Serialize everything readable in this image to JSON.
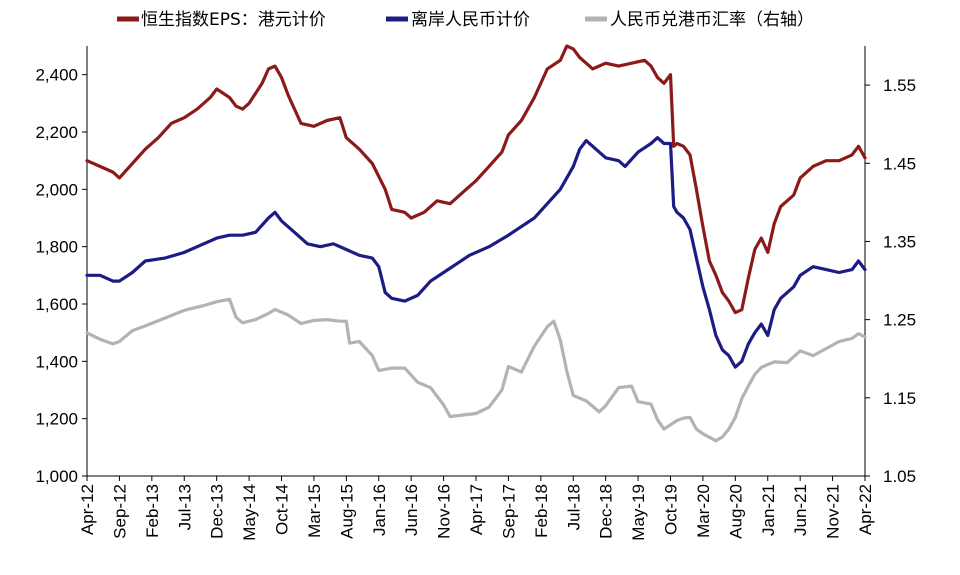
{
  "chart_data": {
    "type": "line",
    "legend": [
      "恒生指数EPS：港元计价",
      "离岸人民币计价",
      "人民币兑港币汇率（右轴）"
    ],
    "legend_position": "top",
    "colors": {
      "eps_hkd": "#8b1a1a",
      "eps_cny": "#1c1c84",
      "fx": "#b3b3b3",
      "axis": "#000000"
    },
    "y_left": {
      "min": 1000,
      "max": 2500,
      "ticks": [
        1000,
        1200,
        1400,
        1600,
        1800,
        2000,
        2200,
        2400
      ],
      "tick_labels": [
        "1,000",
        "1,200",
        "1,400",
        "1,600",
        "1,800",
        "2,000",
        "2,200",
        "2,400"
      ]
    },
    "y_right": {
      "min": 1.05,
      "max": 1.6,
      "ticks": [
        1.05,
        1.15,
        1.25,
        1.35,
        1.45,
        1.55
      ],
      "tick_labels": [
        "1.05",
        "1.15",
        "1.25",
        "1.35",
        "1.45",
        "1.55"
      ]
    },
    "x_axis": {
      "start": "2012-04",
      "end": "2022-04",
      "tick_labels": [
        "Apr-12",
        "Sep-12",
        "Feb-13",
        "Jul-13",
        "Dec-13",
        "May-14",
        "Oct-14",
        "Mar-15",
        "Aug-15",
        "Jan-16",
        "Jun-16",
        "Nov-16",
        "Apr-17",
        "Sep-17",
        "Feb-18",
        "Jul-18",
        "Dec-18",
        "May-19",
        "Oct-19",
        "Mar-20",
        "Aug-20",
        "Jan-21",
        "Jun-21",
        "Nov-21",
        "Apr-22"
      ]
    },
    "grid": false,
    "series": [
      {
        "name": "恒生指数EPS：港元计价",
        "axis": "left",
        "points": [
          [
            "2012-04",
            2100
          ],
          [
            "2012-06",
            2080
          ],
          [
            "2012-08",
            2060
          ],
          [
            "2012-09",
            2040
          ],
          [
            "2012-11",
            2090
          ],
          [
            "2013-01",
            2140
          ],
          [
            "2013-03",
            2180
          ],
          [
            "2013-05",
            2230
          ],
          [
            "2013-07",
            2250
          ],
          [
            "2013-09",
            2280
          ],
          [
            "2013-11",
            2320
          ],
          [
            "2013-12",
            2350
          ],
          [
            "2014-02",
            2320
          ],
          [
            "2014-03",
            2290
          ],
          [
            "2014-04",
            2280
          ],
          [
            "2014-05",
            2300
          ],
          [
            "2014-07",
            2370
          ],
          [
            "2014-08",
            2420
          ],
          [
            "2014-09",
            2430
          ],
          [
            "2014-10",
            2390
          ],
          [
            "2014-11",
            2330
          ],
          [
            "2014-12",
            2280
          ],
          [
            "2015-01",
            2230
          ],
          [
            "2015-03",
            2220
          ],
          [
            "2015-05",
            2240
          ],
          [
            "2015-07",
            2250
          ],
          [
            "2015-08",
            2180
          ],
          [
            "2015-10",
            2140
          ],
          [
            "2015-12",
            2090
          ],
          [
            "2016-02",
            2000
          ],
          [
            "2016-03",
            1930
          ],
          [
            "2016-05",
            1920
          ],
          [
            "2016-06",
            1900
          ],
          [
            "2016-08",
            1920
          ],
          [
            "2016-10",
            1960
          ],
          [
            "2016-12",
            1950
          ],
          [
            "2017-02",
            1990
          ],
          [
            "2017-04",
            2030
          ],
          [
            "2017-06",
            2080
          ],
          [
            "2017-08",
            2130
          ],
          [
            "2017-09",
            2190
          ],
          [
            "2017-11",
            2240
          ],
          [
            "2018-01",
            2320
          ],
          [
            "2018-03",
            2420
          ],
          [
            "2018-05",
            2450
          ],
          [
            "2018-06",
            2500
          ],
          [
            "2018-07",
            2490
          ],
          [
            "2018-08",
            2460
          ],
          [
            "2018-09",
            2440
          ],
          [
            "2018-10",
            2420
          ],
          [
            "2018-12",
            2440
          ],
          [
            "2019-02",
            2430
          ],
          [
            "2019-04",
            2440
          ],
          [
            "2019-06",
            2450
          ],
          [
            "2019-07",
            2430
          ],
          [
            "2019-08",
            2390
          ],
          [
            "2019-09",
            2370
          ],
          [
            "2019-10",
            2400
          ],
          [
            "2019-10.5",
            2150
          ],
          [
            "2019-11",
            2160
          ],
          [
            "2019-12",
            2150
          ],
          [
            "2020-01",
            2120
          ],
          [
            "2020-02",
            2000
          ],
          [
            "2020-03",
            1870
          ],
          [
            "2020-04",
            1750
          ],
          [
            "2020-05",
            1700
          ],
          [
            "2020-06",
            1640
          ],
          [
            "2020-07",
            1610
          ],
          [
            "2020-08",
            1570
          ],
          [
            "2020-09",
            1580
          ],
          [
            "2020-10",
            1690
          ],
          [
            "2020-11",
            1790
          ],
          [
            "2020-12",
            1830
          ],
          [
            "2021-01",
            1780
          ],
          [
            "2021-02",
            1880
          ],
          [
            "2021-03",
            1940
          ],
          [
            "2021-05",
            1980
          ],
          [
            "2021-06",
            2040
          ],
          [
            "2021-08",
            2080
          ],
          [
            "2021-10",
            2100
          ],
          [
            "2021-12",
            2100
          ],
          [
            "2022-02",
            2120
          ],
          [
            "2022-03",
            2150
          ],
          [
            "2022-04",
            2110
          ]
        ]
      },
      {
        "name": "离岸人民币计价",
        "axis": "left",
        "points": [
          [
            "2012-04",
            1700
          ],
          [
            "2012-06",
            1700
          ],
          [
            "2012-08",
            1680
          ],
          [
            "2012-09",
            1680
          ],
          [
            "2012-11",
            1710
          ],
          [
            "2013-01",
            1750
          ],
          [
            "2013-04",
            1760
          ],
          [
            "2013-07",
            1780
          ],
          [
            "2013-10",
            1810
          ],
          [
            "2013-12",
            1830
          ],
          [
            "2014-02",
            1840
          ],
          [
            "2014-04",
            1840
          ],
          [
            "2014-06",
            1850
          ],
          [
            "2014-08",
            1900
          ],
          [
            "2014-09",
            1920
          ],
          [
            "2014-10",
            1890
          ],
          [
            "2014-12",
            1850
          ],
          [
            "2015-02",
            1810
          ],
          [
            "2015-04",
            1800
          ],
          [
            "2015-06",
            1810
          ],
          [
            "2015-08",
            1790
          ],
          [
            "2015-10",
            1770
          ],
          [
            "2015-12",
            1760
          ],
          [
            "2016-01",
            1730
          ],
          [
            "2016-02",
            1640
          ],
          [
            "2016-03",
            1620
          ],
          [
            "2016-05",
            1610
          ],
          [
            "2016-07",
            1630
          ],
          [
            "2016-09",
            1680
          ],
          [
            "2016-11",
            1710
          ],
          [
            "2017-01",
            1740
          ],
          [
            "2017-03",
            1770
          ],
          [
            "2017-06",
            1800
          ],
          [
            "2017-09",
            1840
          ],
          [
            "2017-11",
            1870
          ],
          [
            "2018-01",
            1900
          ],
          [
            "2018-03",
            1950
          ],
          [
            "2018-05",
            2000
          ],
          [
            "2018-07",
            2080
          ],
          [
            "2018-08",
            2140
          ],
          [
            "2018-09",
            2170
          ],
          [
            "2018-11",
            2130
          ],
          [
            "2018-12",
            2110
          ],
          [
            "2019-02",
            2100
          ],
          [
            "2019-03",
            2080
          ],
          [
            "2019-05",
            2130
          ],
          [
            "2019-07",
            2160
          ],
          [
            "2019-08",
            2180
          ],
          [
            "2019-09",
            2160
          ],
          [
            "2019-10",
            2160
          ],
          [
            "2019-10.5",
            1940
          ],
          [
            "2019-11",
            1920
          ],
          [
            "2019-12",
            1900
          ],
          [
            "2020-01",
            1860
          ],
          [
            "2020-02",
            1760
          ],
          [
            "2020-03",
            1660
          ],
          [
            "2020-04",
            1580
          ],
          [
            "2020-05",
            1490
          ],
          [
            "2020-06",
            1440
          ],
          [
            "2020-07",
            1420
          ],
          [
            "2020-08",
            1380
          ],
          [
            "2020-09",
            1400
          ],
          [
            "2020-10",
            1460
          ],
          [
            "2020-11",
            1500
          ],
          [
            "2020-12",
            1530
          ],
          [
            "2021-01",
            1490
          ],
          [
            "2021-02",
            1580
          ],
          [
            "2021-03",
            1620
          ],
          [
            "2021-05",
            1660
          ],
          [
            "2021-06",
            1700
          ],
          [
            "2021-08",
            1730
          ],
          [
            "2021-10",
            1720
          ],
          [
            "2021-12",
            1710
          ],
          [
            "2022-02",
            1720
          ],
          [
            "2022-03",
            1750
          ],
          [
            "2022-04",
            1720
          ]
        ]
      },
      {
        "name": "人民币兑港币汇率（右轴）",
        "axis": "right",
        "points": [
          [
            "2012-04",
            1.233
          ],
          [
            "2012-06",
            1.225
          ],
          [
            "2012-08",
            1.219
          ],
          [
            "2012-09",
            1.222
          ],
          [
            "2012-11",
            1.236
          ],
          [
            "2013-01",
            1.242
          ],
          [
            "2013-04",
            1.252
          ],
          [
            "2013-07",
            1.262
          ],
          [
            "2013-10",
            1.268
          ],
          [
            "2013-12",
            1.273
          ],
          [
            "2014-02",
            1.276
          ],
          [
            "2014-03",
            1.253
          ],
          [
            "2014-04",
            1.246
          ],
          [
            "2014-06",
            1.25
          ],
          [
            "2014-08",
            1.258
          ],
          [
            "2014-09",
            1.263
          ],
          [
            "2014-11",
            1.256
          ],
          [
            "2015-01",
            1.245
          ],
          [
            "2015-03",
            1.249
          ],
          [
            "2015-05",
            1.25
          ],
          [
            "2015-07",
            1.248
          ],
          [
            "2015-08",
            1.248
          ],
          [
            "2015-08.5",
            1.22
          ],
          [
            "2015-10",
            1.222
          ],
          [
            "2015-12",
            1.204
          ],
          [
            "2016-01",
            1.185
          ],
          [
            "2016-03",
            1.188
          ],
          [
            "2016-05",
            1.188
          ],
          [
            "2016-07",
            1.17
          ],
          [
            "2016-09",
            1.163
          ],
          [
            "2016-11",
            1.141
          ],
          [
            "2016-12",
            1.126
          ],
          [
            "2017-02",
            1.128
          ],
          [
            "2017-04",
            1.13
          ],
          [
            "2017-06",
            1.138
          ],
          [
            "2017-08",
            1.16
          ],
          [
            "2017-09",
            1.19
          ],
          [
            "2017-11",
            1.183
          ],
          [
            "2018-01",
            1.216
          ],
          [
            "2018-03",
            1.241
          ],
          [
            "2018-04",
            1.248
          ],
          [
            "2018-05",
            1.224
          ],
          [
            "2018-06",
            1.184
          ],
          [
            "2018-07",
            1.153
          ],
          [
            "2018-09",
            1.146
          ],
          [
            "2018-11",
            1.132
          ],
          [
            "2018-12",
            1.14
          ],
          [
            "2019-02",
            1.163
          ],
          [
            "2019-04",
            1.165
          ],
          [
            "2019-05",
            1.145
          ],
          [
            "2019-07",
            1.142
          ],
          [
            "2019-08",
            1.122
          ],
          [
            "2019-09",
            1.11
          ],
          [
            "2019-11",
            1.121
          ],
          [
            "2019-12",
            1.124
          ],
          [
            "2020-01",
            1.125
          ],
          [
            "2020-02",
            1.11
          ],
          [
            "2020-03",
            1.104
          ],
          [
            "2020-05",
            1.095
          ],
          [
            "2020-06",
            1.1
          ],
          [
            "2020-07",
            1.11
          ],
          [
            "2020-08",
            1.125
          ],
          [
            "2020-09",
            1.149
          ],
          [
            "2020-10",
            1.165
          ],
          [
            "2020-11",
            1.18
          ],
          [
            "2020-12",
            1.189
          ],
          [
            "2021-02",
            1.196
          ],
          [
            "2021-04",
            1.195
          ],
          [
            "2021-06",
            1.21
          ],
          [
            "2021-08",
            1.204
          ],
          [
            "2021-10",
            1.213
          ],
          [
            "2021-12",
            1.222
          ],
          [
            "2022-02",
            1.226
          ],
          [
            "2022-03",
            1.232
          ],
          [
            "2022-04",
            1.228
          ]
        ]
      }
    ]
  }
}
